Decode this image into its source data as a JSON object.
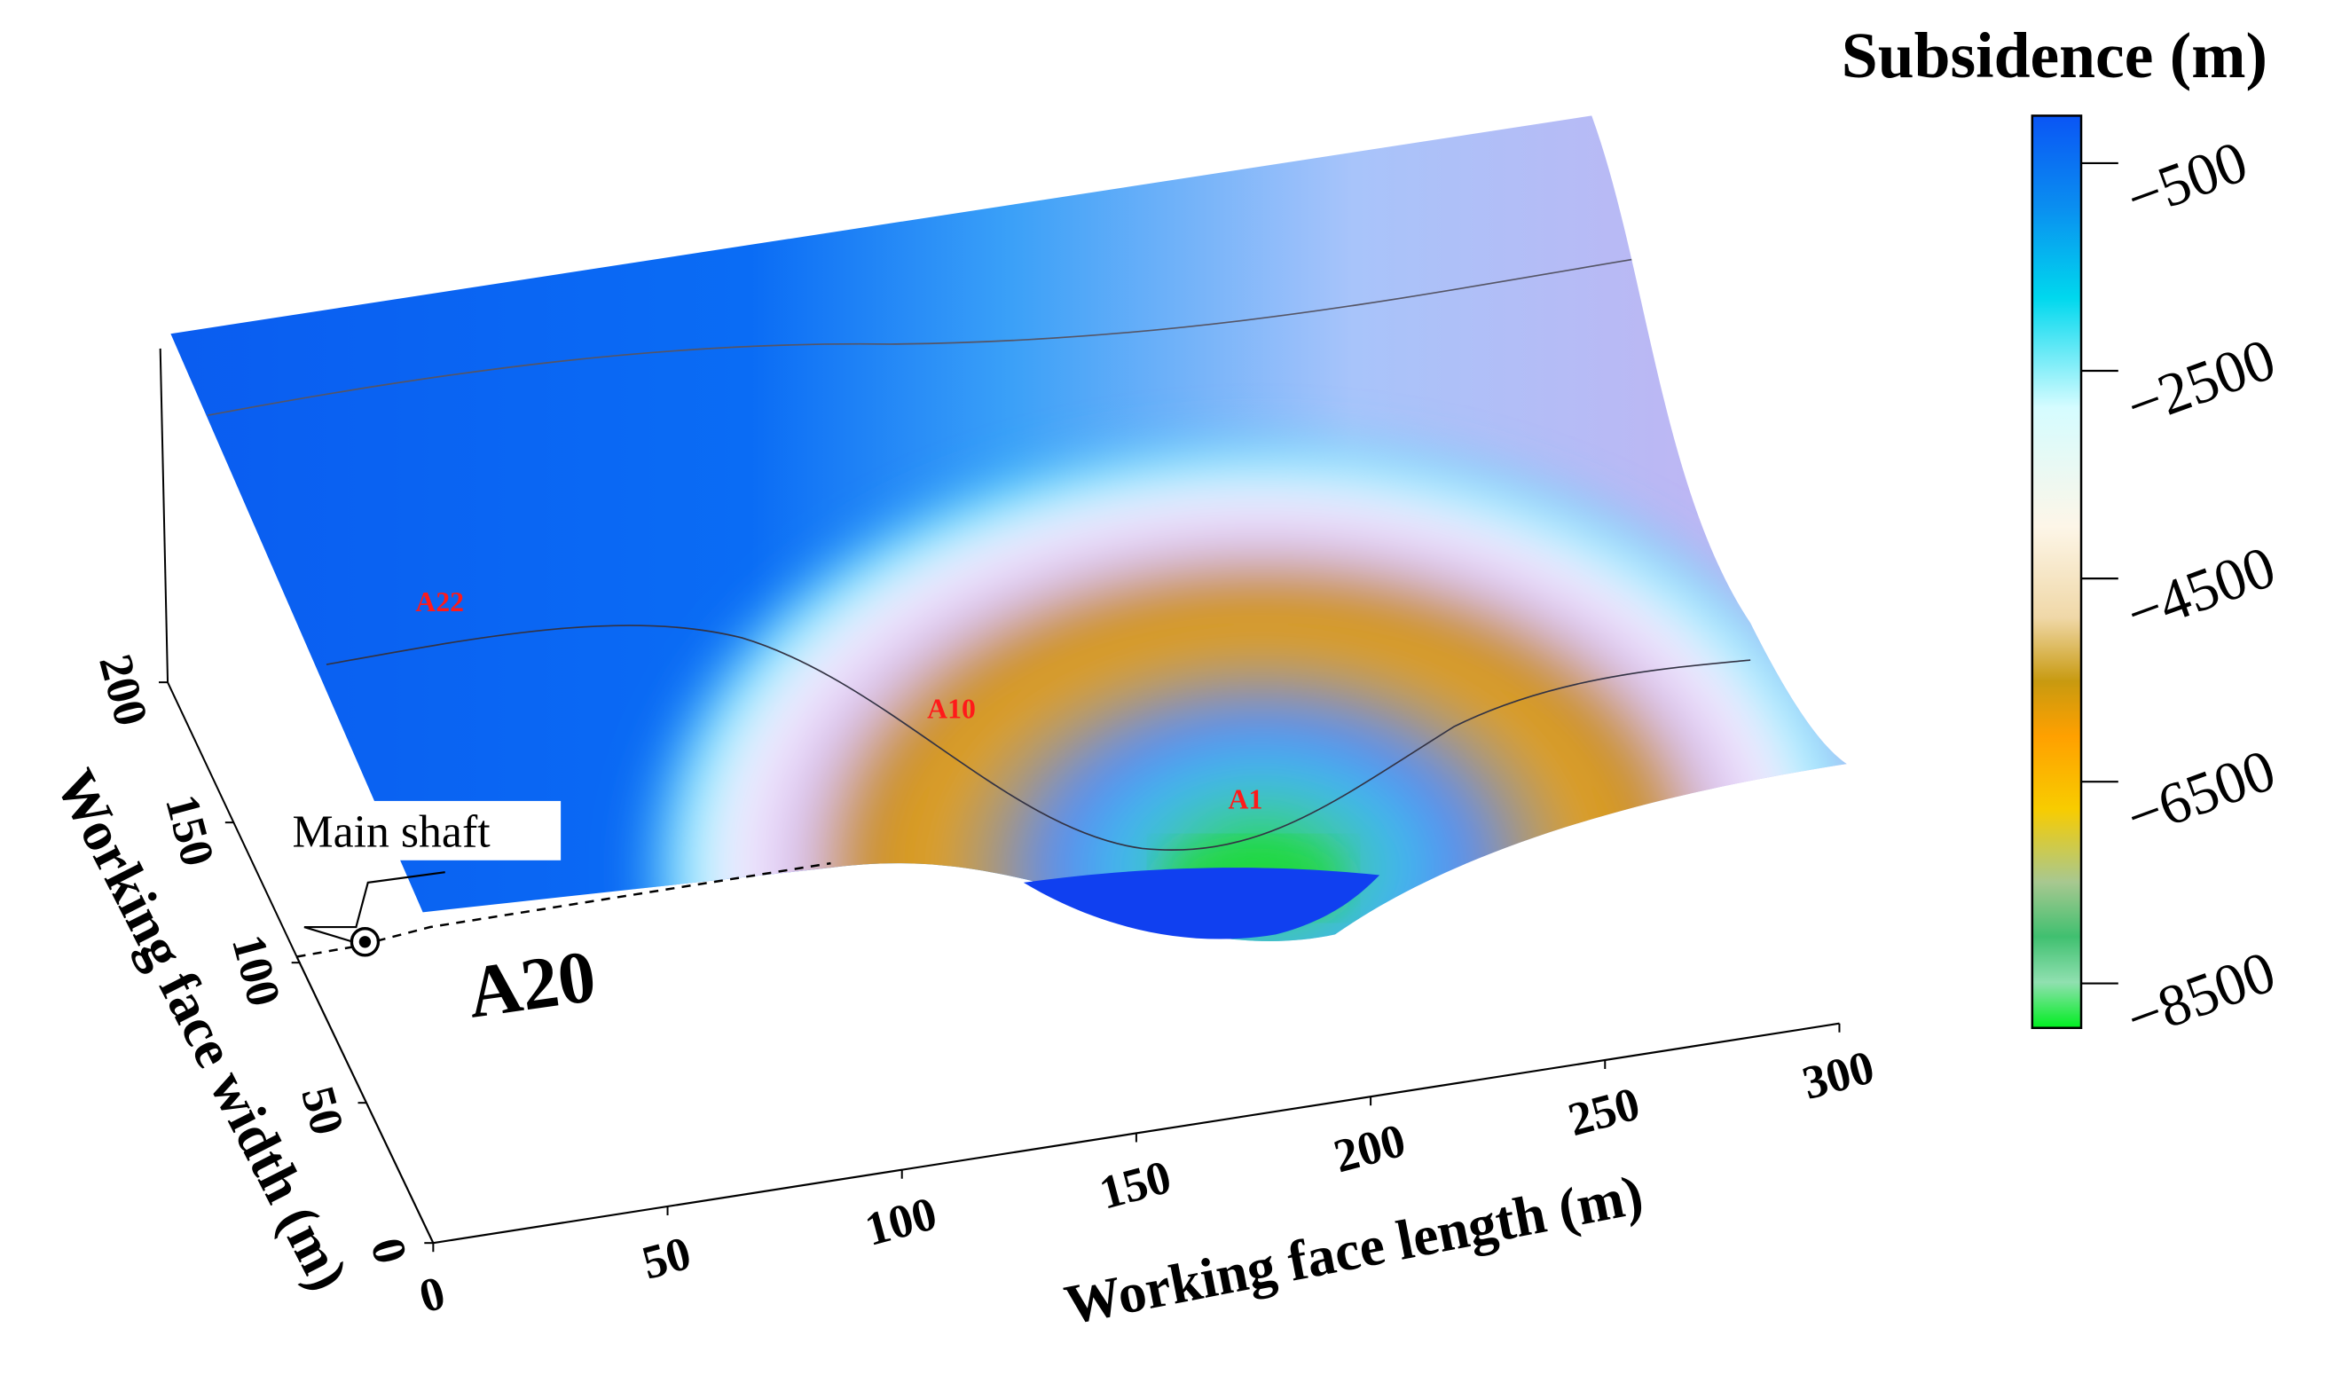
{
  "chart_data": {
    "type": "surface",
    "xlabel": "Working face length (m)",
    "ylabel": "Working face width (m)",
    "x_ticks": [
      "0",
      "50",
      "100",
      "150",
      "200",
      "250",
      "300"
    ],
    "y_ticks": [
      "0",
      "50",
      "100",
      "150",
      "200"
    ],
    "xlim": [
      0,
      300
    ],
    "ylim": [
      0,
      200
    ],
    "colorbar": {
      "title": "Subsidence (m)",
      "ticks": [
        "-500",
        "-2500",
        "-4500",
        "-6500",
        "-8500"
      ],
      "range": [
        -9000,
        0
      ],
      "colors": [
        "#0a5cf0",
        "#00c8e8",
        "#d8fbff",
        "#fbf3e0",
        "#c8960a",
        "#ffa000",
        "#f5c800",
        "#40c070",
        "#00e820"
      ]
    },
    "surface": {
      "deepest_point": {
        "x": 160,
        "y": 100
      },
      "color_far": "#0a5cf0",
      "color_center": "#2ad040"
    },
    "annotations": [
      {
        "id": "a22",
        "text": "A22",
        "color": "#ff1a1a"
      },
      {
        "id": "a10",
        "text": "A10",
        "color": "#ff1a1a"
      },
      {
        "id": "a1",
        "text": "A1",
        "color": "#ff1a1a"
      },
      {
        "id": "a20",
        "text": "A20",
        "color": "#000000"
      },
      {
        "id": "main-shaft",
        "text": "Main shaft",
        "color": "#000000"
      }
    ]
  }
}
